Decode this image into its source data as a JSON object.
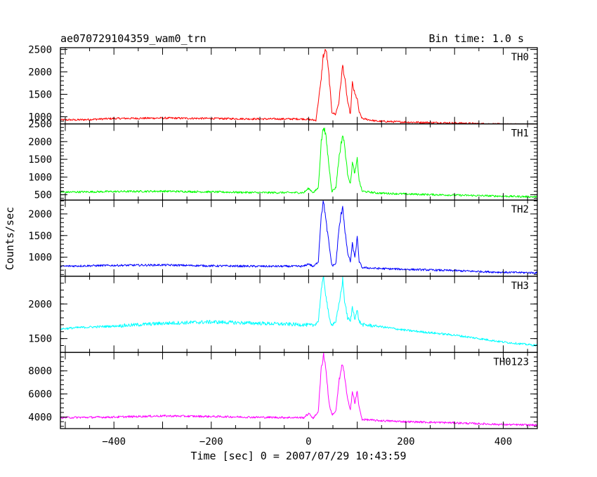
{
  "chart_data": {
    "type": "line",
    "title": "ae070729104359_wam0_trn",
    "subtitle": "Bin time: 1.0 s",
    "xlabel": "Time [sec] 0 = 2007/07/29 10:43:59",
    "ylabel": "Counts/sec",
    "xlim": [
      -510,
      470
    ],
    "xticks": [
      -400,
      -200,
      0,
      200,
      400
    ],
    "xtick_labels": [
      "−400",
      "−200",
      "0",
      "200",
      "400"
    ],
    "grid": false,
    "panels": [
      {
        "name": "TH0",
        "color": "#ff0000",
        "ylim": [
          840,
          2540
        ],
        "yticks": [
          1000,
          1500,
          2000,
          2500
        ],
        "ytick_labels": [
          "1000",
          "1500",
          "2000",
          "2500"
        ],
        "points": [
          [
            -510,
            930
          ],
          [
            -470,
            930
          ],
          [
            -400,
            960
          ],
          [
            -300,
            970
          ],
          [
            -200,
            960
          ],
          [
            -100,
            950
          ],
          [
            -10,
            950
          ],
          [
            15,
            920
          ],
          [
            25,
            1750
          ],
          [
            30,
            2350
          ],
          [
            36,
            2500
          ],
          [
            42,
            1900
          ],
          [
            48,
            1100
          ],
          [
            55,
            1050
          ],
          [
            62,
            1300
          ],
          [
            70,
            2150
          ],
          [
            75,
            1800
          ],
          [
            80,
            1350
          ],
          [
            86,
            1050
          ],
          [
            90,
            1750
          ],
          [
            95,
            1500
          ],
          [
            100,
            1400
          ],
          [
            104,
            1100
          ],
          [
            110,
            960
          ],
          [
            140,
            900
          ],
          [
            200,
            880
          ],
          [
            300,
            860
          ],
          [
            400,
            830
          ],
          [
            470,
            820
          ]
        ]
      },
      {
        "name": "TH1",
        "color": "#00ff00",
        "ylim": [
          350,
          2500
        ],
        "yticks": [
          500,
          1000,
          1500,
          2000,
          2500
        ],
        "ytick_labels": [
          "500",
          "1000",
          "1500",
          "2000",
          "2500"
        ],
        "points": [
          [
            -510,
            570
          ],
          [
            -470,
            580
          ],
          [
            -400,
            590
          ],
          [
            -300,
            600
          ],
          [
            -200,
            580
          ],
          [
            -100,
            560
          ],
          [
            -10,
            560
          ],
          [
            0,
            680
          ],
          [
            10,
            560
          ],
          [
            20,
            700
          ],
          [
            26,
            2000
          ],
          [
            31,
            2450
          ],
          [
            36,
            2100
          ],
          [
            42,
            1300
          ],
          [
            48,
            600
          ],
          [
            56,
            700
          ],
          [
            63,
            1600
          ],
          [
            70,
            2200
          ],
          [
            74,
            1900
          ],
          [
            80,
            1100
          ],
          [
            86,
            800
          ],
          [
            90,
            1400
          ],
          [
            95,
            1100
          ],
          [
            100,
            1500
          ],
          [
            104,
            900
          ],
          [
            110,
            600
          ],
          [
            140,
            550
          ],
          [
            200,
            520
          ],
          [
            300,
            490
          ],
          [
            400,
            460
          ],
          [
            470,
            440
          ]
        ]
      },
      {
        "name": "TH2",
        "color": "#0000ff",
        "ylim": [
          560,
          2320
        ],
        "yticks": [
          1000,
          1500,
          2000
        ],
        "ytick_labels": [
          "1000",
          "1500",
          "2000"
        ],
        "points": [
          [
            -510,
            790
          ],
          [
            -470,
            800
          ],
          [
            -400,
            810
          ],
          [
            -300,
            820
          ],
          [
            -200,
            800
          ],
          [
            -100,
            790
          ],
          [
            -10,
            790
          ],
          [
            0,
            850
          ],
          [
            10,
            780
          ],
          [
            20,
            900
          ],
          [
            26,
            2000
          ],
          [
            31,
            2300
          ],
          [
            36,
            1800
          ],
          [
            42,
            1300
          ],
          [
            48,
            800
          ],
          [
            56,
            850
          ],
          [
            63,
            1700
          ],
          [
            70,
            2200
          ],
          [
            74,
            1700
          ],
          [
            80,
            1100
          ],
          [
            86,
            900
          ],
          [
            90,
            1300
          ],
          [
            95,
            1000
          ],
          [
            100,
            1450
          ],
          [
            104,
            900
          ],
          [
            110,
            760
          ],
          [
            140,
            740
          ],
          [
            200,
            720
          ],
          [
            300,
            690
          ],
          [
            400,
            650
          ],
          [
            470,
            640
          ]
        ]
      },
      {
        "name": "TH3",
        "color": "#00ffff",
        "ylim": [
          1300,
          2400
        ],
        "yticks": [
          1500,
          2000
        ],
        "ytick_labels": [
          "1500",
          "2000"
        ],
        "points": [
          [
            -510,
            1640
          ],
          [
            -470,
            1660
          ],
          [
            -400,
            1680
          ],
          [
            -300,
            1720
          ],
          [
            -200,
            1740
          ],
          [
            -100,
            1720
          ],
          [
            -10,
            1700
          ],
          [
            10,
            1690
          ],
          [
            20,
            1750
          ],
          [
            26,
            2200
          ],
          [
            31,
            2380
          ],
          [
            36,
            2100
          ],
          [
            42,
            1800
          ],
          [
            48,
            1700
          ],
          [
            56,
            1750
          ],
          [
            63,
            2000
          ],
          [
            70,
            2350
          ],
          [
            74,
            2050
          ],
          [
            80,
            1800
          ],
          [
            86,
            1750
          ],
          [
            90,
            1950
          ],
          [
            95,
            1800
          ],
          [
            100,
            1900
          ],
          [
            104,
            1750
          ],
          [
            110,
            1700
          ],
          [
            140,
            1680
          ],
          [
            200,
            1620
          ],
          [
            300,
            1550
          ],
          [
            400,
            1450
          ],
          [
            470,
            1400
          ]
        ]
      },
      {
        "name": "TH0123",
        "color": "#ff00ff",
        "ylim": [
          3000,
          9600
        ],
        "yticks": [
          4000,
          6000,
          8000
        ],
        "ytick_labels": [
          "4000",
          "6000",
          "8000"
        ],
        "points": [
          [
            -510,
            3950
          ],
          [
            -470,
            3970
          ],
          [
            -400,
            4000
          ],
          [
            -300,
            4100
          ],
          [
            -200,
            4050
          ],
          [
            -100,
            3980
          ],
          [
            -10,
            3950
          ],
          [
            0,
            4300
          ],
          [
            10,
            3900
          ],
          [
            20,
            4500
          ],
          [
            26,
            8200
          ],
          [
            31,
            9500
          ],
          [
            36,
            8000
          ],
          [
            42,
            5200
          ],
          [
            48,
            4200
          ],
          [
            56,
            4500
          ],
          [
            63,
            7200
          ],
          [
            70,
            8700
          ],
          [
            74,
            7500
          ],
          [
            80,
            5500
          ],
          [
            86,
            4700
          ],
          [
            90,
            6200
          ],
          [
            95,
            5200
          ],
          [
            100,
            6200
          ],
          [
            104,
            4800
          ],
          [
            110,
            3800
          ],
          [
            140,
            3700
          ],
          [
            200,
            3600
          ],
          [
            300,
            3500
          ],
          [
            400,
            3350
          ],
          [
            470,
            3300
          ]
        ]
      }
    ]
  }
}
